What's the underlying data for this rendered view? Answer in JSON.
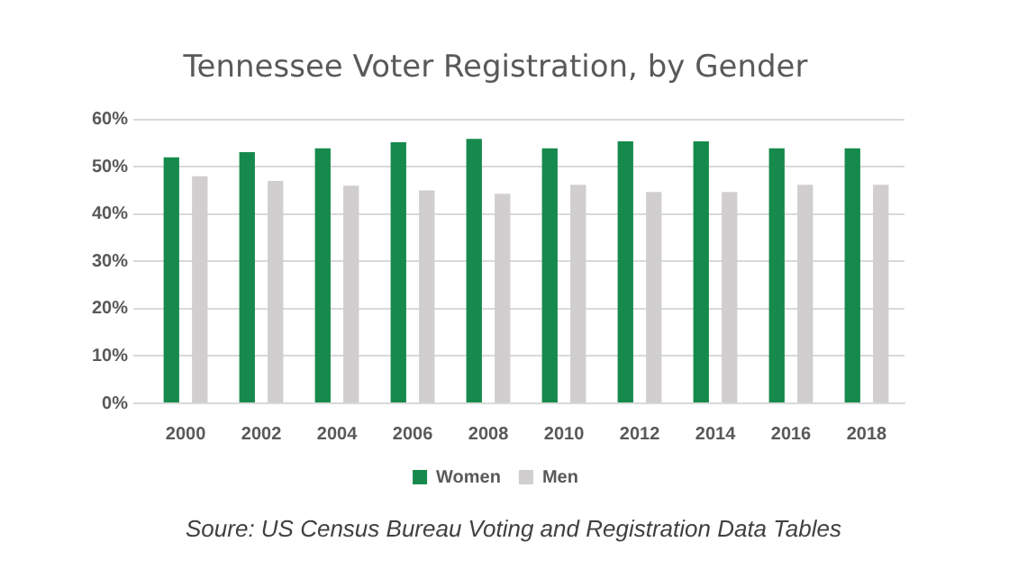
{
  "chart_data": {
    "type": "bar",
    "title": "Tennessee Voter Registration, by Gender",
    "categories": [
      "2000",
      "2002",
      "2004",
      "2006",
      "2008",
      "2010",
      "2012",
      "2014",
      "2016",
      "2018"
    ],
    "series": [
      {
        "name": "Women",
        "color": "#168a4c",
        "values": [
          52.0,
          53.1,
          53.9,
          55.2,
          55.9,
          53.9,
          55.4,
          55.4,
          53.9,
          53.9
        ]
      },
      {
        "name": "Men",
        "color": "#d0cece",
        "values": [
          48.0,
          47.0,
          46.0,
          45.0,
          44.3,
          46.2,
          44.7,
          44.7,
          46.2,
          46.2
        ]
      }
    ],
    "ylim": [
      0,
      60
    ],
    "yticks": [
      {
        "value": 0,
        "label": "0%"
      },
      {
        "value": 10,
        "label": "10%"
      },
      {
        "value": 20,
        "label": "20%"
      },
      {
        "value": 30,
        "label": "30%"
      },
      {
        "value": 40,
        "label": "40%"
      },
      {
        "value": 50,
        "label": "50%"
      },
      {
        "value": 60,
        "label": "60%"
      }
    ],
    "grid": "y",
    "legend": "bottom",
    "annotations": [
      "Soure: US Census Bureau Voting and Registration Data Tables"
    ]
  }
}
